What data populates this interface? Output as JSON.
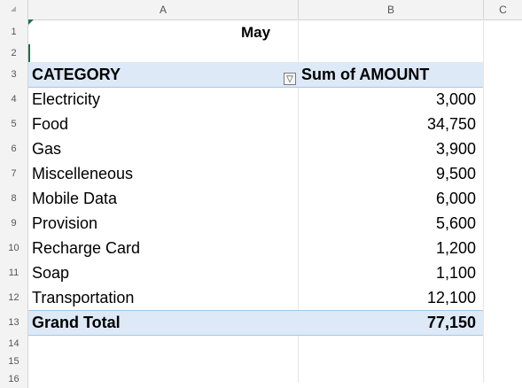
{
  "columns": [
    "A",
    "B",
    "C"
  ],
  "row_numbers": [
    "1",
    "2",
    "3",
    "4",
    "5",
    "6",
    "7",
    "8",
    "9",
    "10",
    "11",
    "12",
    "13",
    "14",
    "15",
    "16"
  ],
  "pivot": {
    "title": "May",
    "header_category": "CATEGORY",
    "header_amount": "Sum of AMOUNT",
    "filter_icon": "filter-sort-icon",
    "rows": [
      {
        "category": "Electricity",
        "amount": "3,000"
      },
      {
        "category": "Food",
        "amount": "34,750"
      },
      {
        "category": "Gas",
        "amount": "3,900"
      },
      {
        "category": "Miscelleneous",
        "amount": "9,500"
      },
      {
        "category": "Mobile Data",
        "amount": "6,000"
      },
      {
        "category": "Provision",
        "amount": "5,600"
      },
      {
        "category": "Recharge Card",
        "amount": "1,200"
      },
      {
        "category": "Soap",
        "amount": "1,100"
      },
      {
        "category": "Transportation",
        "amount": "12,100"
      }
    ],
    "grand_total_label": "Grand Total",
    "grand_total_value": "77,150"
  },
  "colors": {
    "header_fill": "#dde9f6",
    "header_border": "#a8c6e6",
    "selection": "#1e7145"
  }
}
